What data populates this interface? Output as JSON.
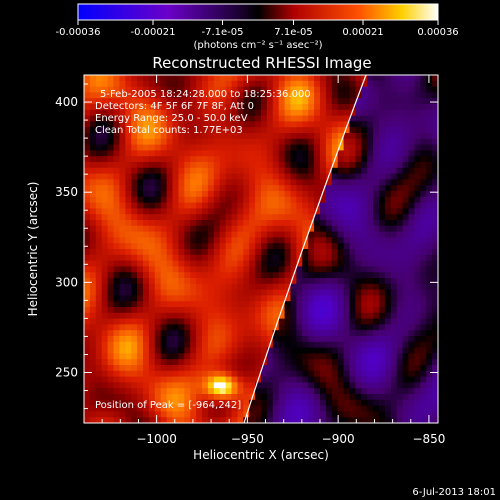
{
  "chart_data": {
    "type": "heatmap",
    "title": "Reconstructed RHESSI Image",
    "xlabel": "Heliocentric X (arcsec)",
    "ylabel": "Heliocentric Y (arcsec)",
    "xlim": [
      -1040,
      -845
    ],
    "ylim": [
      222,
      415
    ],
    "x_ticks": [
      -1000,
      -950,
      -900,
      -850
    ],
    "y_ticks": [
      250,
      300,
      350,
      400
    ],
    "colorbar": {
      "ticks": [
        "-0.00036",
        "-0.00021",
        "-7.1e-05",
        "7.1e-05",
        "0.00021",
        "0.00036"
      ],
      "unit": "(photons cm⁻² s⁻¹ asec⁻²)",
      "range": [
        -0.00036,
        0.00036
      ]
    },
    "annotations": {
      "time": "5-Feb-2005 18:24:28.000 to 18:25:36.000",
      "detectors": "Detectors: 4F 5F 6F 7F 8F, Att 0",
      "energy": "Energy Range: 25.0 - 50.0 keV",
      "method": "Clean     Total counts: 1.77E+03",
      "peak": "Position of Peak = [-964,242]"
    },
    "peak": [
      -964,
      242
    ],
    "limb": "white arc (solar limb)"
  },
  "footer": {
    "timestamp": "6-Jul-2013 18:01"
  }
}
